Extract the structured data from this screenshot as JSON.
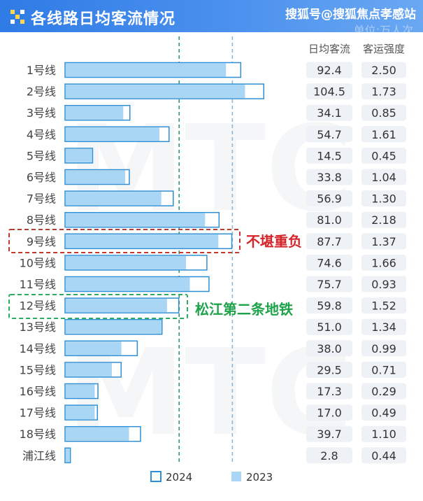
{
  "header": {
    "title": "各线路日均客流情况",
    "unit": "单位:万人次",
    "watermark": "搜狐号@搜狐焦点孝感站",
    "icon": "grid-logo-icon"
  },
  "annotations": {
    "heavy_load": "不堪重负",
    "line12_note": "松江第二条地铁"
  },
  "colors": {
    "header": "#3b86ea",
    "bar_2023": "#a9d6f5",
    "bar_2024": "#ffffff",
    "bar_border": "#2f8fd6",
    "value_pill": "#eef2f6",
    "red_box": "#c0392b",
    "green_box": "#27ae60"
  },
  "chart_data": {
    "type": "bar",
    "orientation": "horizontal",
    "columns": [
      "日均客流",
      "客运强度"
    ],
    "legend": [
      "2024",
      "2023"
    ],
    "categories": [
      "1号线",
      "2号线",
      "3号线",
      "4号线",
      "5号线",
      "6号线",
      "7号线",
      "8号线",
      "9号线",
      "10号线",
      "11号线",
      "12号线",
      "13号线",
      "14号线",
      "15号线",
      "16号线",
      "17号线",
      "18号线",
      "浦江线"
    ],
    "series": [
      {
        "name": "2024",
        "values": [
          92.4,
          104.5,
          34.1,
          54.7,
          14.5,
          33.8,
          56.9,
          81.0,
          87.7,
          74.6,
          75.7,
          59.8,
          51.0,
          38.0,
          29.5,
          17.3,
          17.0,
          39.7,
          2.8
        ]
      },
      {
        "name": "2023",
        "values": [
          85,
          95,
          31,
          50,
          14.5,
          32,
          51,
          74,
          81,
          64,
          66,
          54,
          51,
          30,
          25,
          16,
          16,
          34,
          2.8
        ]
      }
    ],
    "daily_ridership_labels": [
      "92.4",
      "104.5",
      "34.1",
      "54.7",
      "14.5",
      "33.8",
      "56.9",
      "81.0",
      "87.7",
      "74.6",
      "75.7",
      "59.8",
      "51.0",
      "38.0",
      "29.5",
      "17.3",
      "17.0",
      "39.7",
      "2.8"
    ],
    "intensity_labels": [
      "2.50",
      "1.73",
      "0.85",
      "1.61",
      "0.45",
      "1.04",
      "1.30",
      "2.18",
      "1.37",
      "1.66",
      "0.93",
      "1.52",
      "1.34",
      "0.99",
      "0.71",
      "0.29",
      "0.49",
      "1.10",
      "0.44"
    ],
    "reference_lines": [
      60,
      88
    ],
    "xlim": [
      0,
      110
    ],
    "grid": false,
    "legend_position": "bottom"
  }
}
